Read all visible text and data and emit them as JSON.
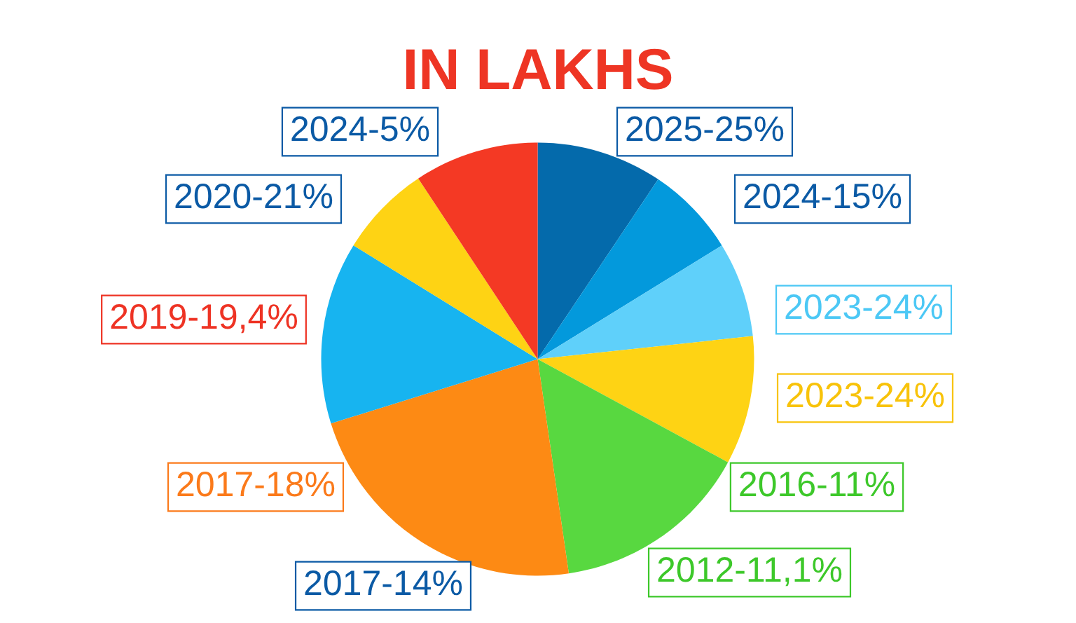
{
  "chart_data": {
    "type": "pie",
    "title": "IN LAKHS",
    "categories": [
      "2025-25%",
      "2024-15%",
      "2023-24%",
      "2023-24%",
      "2016-11%",
      "2017-18%",
      "2019-19,4%",
      "2020-21%",
      "2024-5%"
    ],
    "values": [
      9.4,
      6.8,
      7.1,
      9.6,
      14.8,
      22.5,
      13.6,
      6.9,
      9.3
    ],
    "colors": [
      "#046aab",
      "#0399dc",
      "#5fd0fa",
      "#fed314",
      "#58d840",
      "#fd8a14",
      "#17b4f0",
      "#fed314",
      "#f43924"
    ],
    "annotations": [
      "2012-11,1%",
      "2017-14%"
    ]
  }
}
